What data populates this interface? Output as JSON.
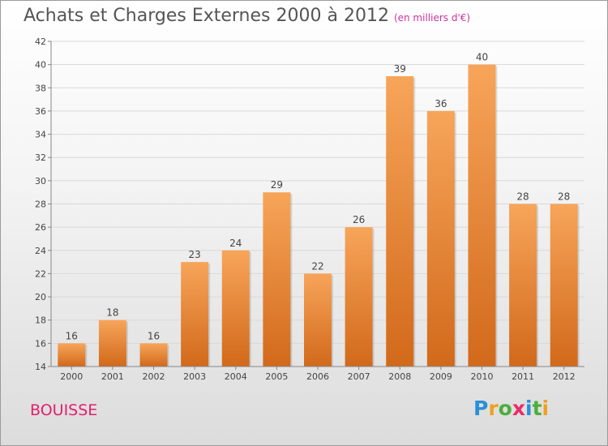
{
  "title": "Achats et Charges Externes 2000 à 2012",
  "subtitle": "(en milliers d'€)",
  "town": "BOUISSE",
  "logo": {
    "letters": [
      "P",
      "r",
      "o",
      "x",
      "i",
      "t",
      "i"
    ],
    "colors": [
      "#2a8fd6",
      "#f0a020",
      "#4cae3c",
      "#e82c6a",
      "#2a8fd6",
      "#4cae3c",
      "#f0a020"
    ]
  },
  "chart_data": {
    "type": "bar",
    "categories": [
      "2000",
      "2001",
      "2002",
      "2003",
      "2004",
      "2005",
      "2006",
      "2007",
      "2008",
      "2009",
      "2010",
      "2011",
      "2012"
    ],
    "values": [
      16,
      18,
      16,
      23,
      24,
      29,
      22,
      26,
      39,
      36,
      40,
      28,
      28
    ],
    "data_labels": [
      "16",
      "18",
      "16",
      "23",
      "24",
      "29",
      "22",
      "26",
      "39",
      "36",
      "40",
      "28",
      "28"
    ],
    "ylim": [
      14,
      42
    ],
    "yticks": [
      14,
      16,
      18,
      20,
      22,
      24,
      26,
      28,
      30,
      32,
      34,
      36,
      38,
      40,
      42
    ],
    "ytick_labels": [
      "14",
      "16",
      "18",
      "20",
      "22",
      "24",
      "26",
      "28",
      "30",
      "32",
      "34",
      "36",
      "38",
      "40",
      "42"
    ],
    "grid": true,
    "bar_color_top": "#f7a55a",
    "bar_color_bottom": "#d2691a"
  }
}
